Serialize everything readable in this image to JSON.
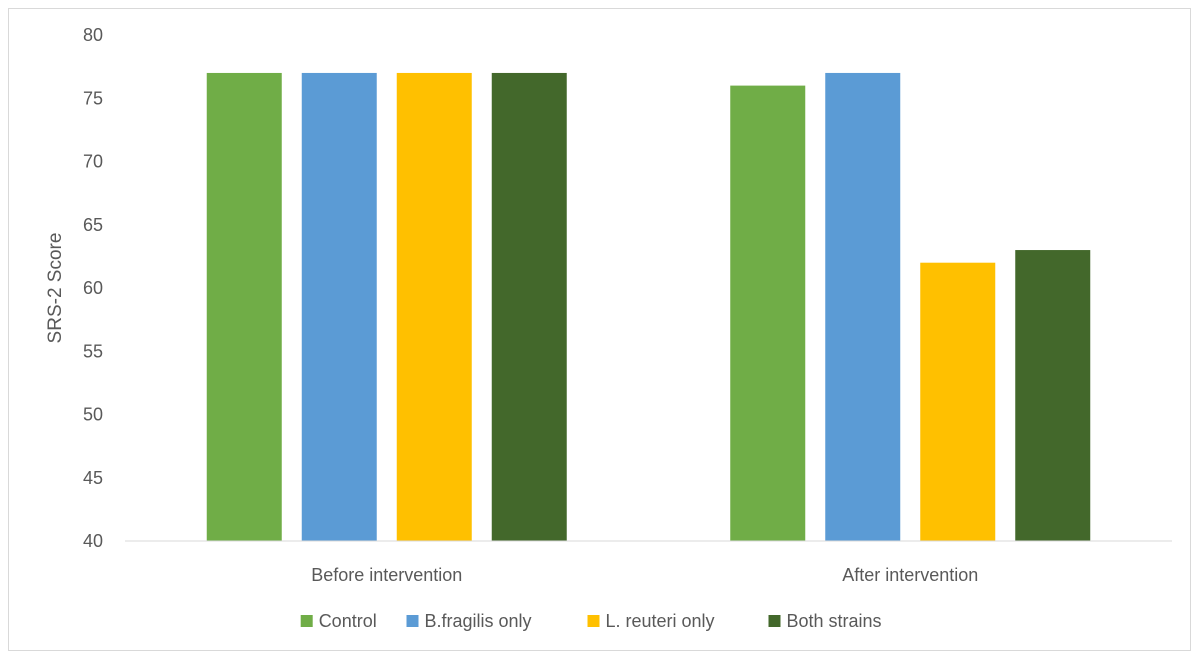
{
  "chart_data": {
    "type": "bar",
    "title": "",
    "xlabel": "",
    "ylabel": "SRS-2 Score",
    "ylim": [
      40,
      80
    ],
    "ytick_step": 5,
    "grid": false,
    "legend_position": "bottom",
    "categories": [
      "Before intervention",
      "After intervention"
    ],
    "series": [
      {
        "name": "Control",
        "color": "#70ad47",
        "values": [
          77,
          76
        ]
      },
      {
        "name": "B.fragilis only",
        "color": "#5b9bd5",
        "values": [
          77,
          77
        ]
      },
      {
        "name": "L. reuteri only",
        "color": "#ffc000",
        "values": [
          77,
          62
        ]
      },
      {
        "name": "Both strains",
        "color": "#43682b",
        "values": [
          77,
          63
        ]
      }
    ]
  }
}
